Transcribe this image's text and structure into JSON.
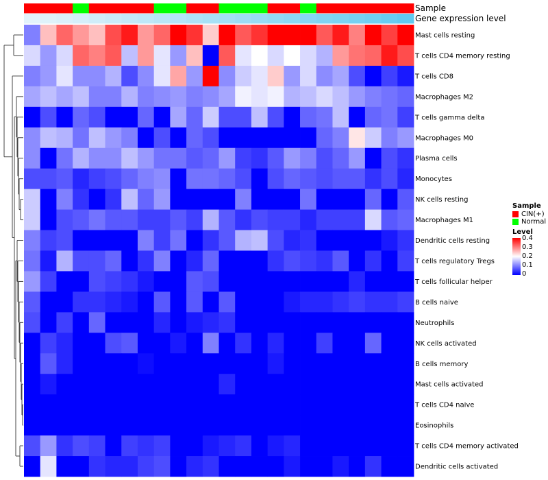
{
  "chart_data": {
    "type": "heatmap",
    "annotation_labels": [
      "Sample",
      "Gene expression level"
    ],
    "rows": [
      "Mast cells resting",
      "T cells CD4 memory resting",
      "T cells CD8",
      "Macrophages M2",
      "T cells gamma delta",
      "Macrophages M0",
      "Plasma cells",
      "Monocytes",
      "NK cells resting",
      "Macrophages M1",
      "Dendritic cells resting",
      "T cells regulatory  Tregs",
      "T cells follicular helper",
      "B cells naive",
      "Neutrophils",
      "NK cells activated",
      "B cells memory",
      "Mast cells activated",
      "T cells CD4 naive",
      "Eosinophils",
      "T cells CD4 memory activated",
      "Dendritic cells activated"
    ],
    "sample_groups": [
      "CIN(+)",
      "CIN(+)",
      "CIN(+)",
      "Normal",
      "CIN(+)",
      "CIN(+)",
      "CIN(+)",
      "CIN(+)",
      "Normal",
      "Normal",
      "CIN(+)",
      "CIN(+)",
      "Normal",
      "Normal",
      "Normal",
      "CIN(+)",
      "CIN(+)",
      "Normal",
      "CIN(+)",
      "CIN(+)",
      "CIN(+)",
      "CIN(+)",
      "CIN(+)",
      "CIN(+)"
    ],
    "gene_expression_level": [
      0.02,
      0.05,
      0.08,
      0.12,
      0.16,
      0.2,
      0.24,
      0.28,
      0.32,
      0.36,
      0.4,
      0.44,
      0.48,
      0.52,
      0.56,
      0.6,
      0.64,
      0.68,
      0.72,
      0.76,
      0.8,
      0.84,
      0.9,
      0.96
    ],
    "values": [
      [
        0.1,
        0.25,
        0.32,
        0.28,
        0.25,
        0.34,
        0.38,
        0.28,
        0.32,
        0.4,
        0.36,
        0.24,
        0.4,
        0.33,
        0.36,
        0.4,
        0.4,
        0.4,
        0.33,
        0.38,
        0.3,
        0.4,
        0.35,
        0.4
      ],
      [
        0.17,
        0.12,
        0.17,
        0.32,
        0.3,
        0.33,
        0.15,
        0.28,
        0.18,
        0.12,
        0.25,
        0.0,
        0.33,
        0.18,
        0.2,
        0.17,
        0.2,
        0.17,
        0.14,
        0.28,
        0.31,
        0.32,
        0.38,
        0.34
      ],
      [
        0.1,
        0.12,
        0.18,
        0.11,
        0.11,
        0.14,
        0.06,
        0.11,
        0.18,
        0.27,
        0.12,
        0.4,
        0.11,
        0.16,
        0.18,
        0.24,
        0.12,
        0.17,
        0.11,
        0.13,
        0.06,
        0.0,
        0.05,
        0.02
      ],
      [
        0.13,
        0.15,
        0.13,
        0.15,
        0.1,
        0.1,
        0.14,
        0.1,
        0.11,
        0.12,
        0.1,
        0.11,
        0.13,
        0.19,
        0.18,
        0.19,
        0.14,
        0.15,
        0.17,
        0.15,
        0.12,
        0.1,
        0.09,
        0.08
      ],
      [
        0.0,
        0.06,
        0.0,
        0.08,
        0.06,
        0.0,
        0.0,
        0.08,
        0.0,
        0.13,
        0.08,
        0.16,
        0.06,
        0.06,
        0.15,
        0.06,
        0.0,
        0.08,
        0.09,
        0.15,
        0.0,
        0.08,
        0.09,
        0.05
      ],
      [
        0.11,
        0.15,
        0.14,
        0.09,
        0.15,
        0.12,
        0.1,
        0.0,
        0.06,
        0.0,
        0.08,
        0.06,
        0.0,
        0.0,
        0.0,
        0.0,
        0.0,
        0.0,
        0.08,
        0.1,
        0.22,
        0.16,
        0.1,
        0.12
      ],
      [
        0.11,
        0.0,
        0.09,
        0.14,
        0.11,
        0.11,
        0.15,
        0.12,
        0.09,
        0.09,
        0.07,
        0.08,
        0.12,
        0.05,
        0.04,
        0.07,
        0.12,
        0.1,
        0.06,
        0.08,
        0.12,
        0.0,
        0.06,
        0.04
      ],
      [
        0.06,
        0.06,
        0.07,
        0.03,
        0.05,
        0.06,
        0.08,
        0.1,
        0.11,
        0.0,
        0.09,
        0.09,
        0.08,
        0.06,
        0.0,
        0.06,
        0.08,
        0.07,
        0.06,
        0.07,
        0.07,
        0.04,
        0.06,
        0.03
      ],
      [
        0.16,
        0.0,
        0.1,
        0.04,
        0.0,
        0.04,
        0.15,
        0.08,
        0.12,
        0.0,
        0.0,
        0.0,
        0.0,
        0.1,
        0.0,
        0.0,
        0.0,
        0.09,
        0.0,
        0.0,
        0.0,
        0.08,
        0.0,
        0.07
      ],
      [
        0.16,
        0.0,
        0.06,
        0.07,
        0.09,
        0.07,
        0.07,
        0.05,
        0.05,
        0.07,
        0.05,
        0.14,
        0.07,
        0.04,
        0.06,
        0.05,
        0.05,
        0.03,
        0.05,
        0.05,
        0.05,
        0.17,
        0.07,
        0.08
      ],
      [
        0.1,
        0.05,
        0.06,
        0.0,
        0.0,
        0.0,
        0.0,
        0.1,
        0.05,
        0.09,
        0.0,
        0.04,
        0.07,
        0.14,
        0.15,
        0.06,
        0.03,
        0.04,
        0.0,
        0.0,
        0.0,
        0.0,
        0.02,
        0.04
      ],
      [
        0.09,
        0.02,
        0.14,
        0.06,
        0.06,
        0.08,
        0.0,
        0.04,
        0.1,
        0.0,
        0.03,
        0.08,
        0.0,
        0.0,
        0.0,
        0.04,
        0.06,
        0.05,
        0.04,
        0.07,
        0.0,
        0.04,
        0.0,
        0.05
      ],
      [
        0.12,
        0.05,
        0.0,
        0.0,
        0.06,
        0.05,
        0.04,
        0.02,
        0.0,
        0.0,
        0.07,
        0.06,
        0.0,
        0.0,
        0.0,
        0.0,
        0.0,
        0.0,
        0.0,
        0.0,
        0.03,
        0.0,
        0.0,
        0.0
      ],
      [
        0.07,
        0.0,
        0.0,
        0.04,
        0.04,
        0.03,
        0.02,
        0.0,
        0.07,
        0.0,
        0.07,
        0.0,
        0.07,
        0.0,
        0.0,
        0.0,
        0.02,
        0.03,
        0.03,
        0.04,
        0.05,
        0.04,
        0.04,
        0.05
      ],
      [
        0.06,
        0.0,
        0.05,
        0.0,
        0.08,
        0.0,
        0.0,
        0.0,
        0.03,
        0.0,
        0.02,
        0.03,
        0.04,
        0.0,
        0.0,
        0.0,
        0.0,
        0.0,
        0.0,
        0.0,
        0.0,
        0.0,
        0.0,
        0.0
      ],
      [
        0.0,
        0.05,
        0.03,
        0.0,
        0.0,
        0.06,
        0.07,
        0.0,
        0.0,
        0.02,
        0.0,
        0.1,
        0.0,
        0.04,
        0.0,
        0.03,
        0.0,
        0.0,
        0.05,
        0.0,
        0.0,
        0.08,
        0.0,
        0.0
      ],
      [
        0.0,
        0.07,
        0.03,
        0.0,
        0.0,
        0.0,
        0.0,
        0.01,
        0.0,
        0.0,
        0.0,
        0.0,
        0.0,
        0.0,
        0.0,
        0.02,
        0.0,
        0.0,
        0.0,
        0.0,
        0.0,
        0.0,
        0.0,
        0.0
      ],
      [
        0.0,
        0.02,
        0.0,
        0.0,
        0.0,
        0.0,
        0.0,
        0.0,
        0.0,
        0.0,
        0.0,
        0.0,
        0.03,
        0.0,
        0.0,
        0.0,
        0.0,
        0.0,
        0.0,
        0.0,
        0.0,
        0.0,
        0.0,
        0.0
      ],
      [
        0.0,
        0.0,
        0.0,
        0.0,
        0.0,
        0.0,
        0.0,
        0.0,
        0.0,
        0.0,
        0.0,
        0.0,
        0.0,
        0.0,
        0.0,
        0.0,
        0.0,
        0.0,
        0.0,
        0.0,
        0.0,
        0.0,
        0.0,
        0.0
      ],
      [
        0.0,
        0.0,
        0.0,
        0.0,
        0.0,
        0.0,
        0.0,
        0.0,
        0.0,
        0.0,
        0.0,
        0.0,
        0.0,
        0.0,
        0.0,
        0.0,
        0.0,
        0.0,
        0.0,
        0.0,
        0.0,
        0.0,
        0.0,
        0.0
      ],
      [
        0.06,
        0.12,
        0.04,
        0.06,
        0.05,
        0.0,
        0.05,
        0.04,
        0.05,
        0.0,
        0.0,
        0.02,
        0.03,
        0.04,
        0.0,
        0.02,
        0.03,
        0.0,
        0.0,
        0.0,
        0.0,
        0.0,
        0.0,
        0.0
      ],
      [
        0.0,
        0.18,
        0.0,
        0.0,
        0.04,
        0.03,
        0.03,
        0.05,
        0.06,
        0.0,
        0.03,
        0.04,
        0.0,
        0.0,
        0.0,
        0.0,
        0.02,
        0.0,
        0.0,
        0.02,
        0.0,
        0.04,
        0.0,
        0.0
      ]
    ],
    "legend": {
      "sample_title": "Sample",
      "groups": [
        {
          "label": "CIN(+)",
          "color": "#ff0000"
        },
        {
          "label": "Normal",
          "color": "#00ff00"
        }
      ],
      "level_title": "Level",
      "level_ticks": [
        0.4,
        0.3,
        0.2,
        0.1,
        0
      ],
      "colors": {
        "low": "#0000ff",
        "mid": "#ffffff",
        "high": "#ff0000"
      },
      "range": [
        0,
        0.4
      ]
    },
    "annotation_colors": {
      "expression_low": "#e6f4fb",
      "expression_high": "#5ac8f0"
    },
    "dendrogram": "row clustering tree on the left"
  }
}
